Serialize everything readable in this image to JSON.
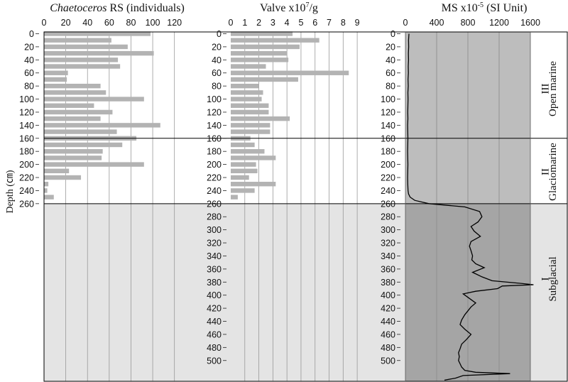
{
  "figure": {
    "y_label": "Depth (㎝)"
  },
  "units": [
    {
      "label": "III",
      "name": "Open marine",
      "from": 0,
      "to": 160
    },
    {
      "label": "II",
      "name": "Glaciomarine",
      "from": 160,
      "to": 260
    },
    {
      "label": "I",
      "name": "Subglacial",
      "from": 260,
      "to": 530
    }
  ],
  "colors": {
    "bar": "#b3b3b3",
    "subglacial_band": "#e4e4e4",
    "ms_upper_background": "#bdbdbd",
    "ms_lower_background": "#a5a5a5",
    "grid": "#999999",
    "line": "#000000"
  },
  "chart_data": [
    {
      "type": "bar",
      "orientation": "horizontal",
      "title_italic": "Chaetoceros",
      "title_rest": " RS (individuals)",
      "xlim": [
        0,
        130
      ],
      "xticks": [
        0,
        20,
        40,
        60,
        80,
        100,
        120
      ],
      "ylim": [
        0,
        530
      ],
      "depth": [
        0,
        10,
        20,
        30,
        40,
        50,
        60,
        70,
        80,
        90,
        100,
        110,
        120,
        130,
        140,
        150,
        160,
        170,
        180,
        190,
        200,
        210,
        220,
        230,
        240,
        250
      ],
      "values": [
        98,
        62,
        77,
        101,
        68,
        70,
        22,
        21,
        52,
        57,
        92,
        46,
        63,
        52,
        107,
        67,
        85,
        72,
        54,
        53,
        92,
        23,
        34,
        4,
        3,
        9
      ]
    },
    {
      "type": "bar",
      "orientation": "horizontal",
      "title_main": "Valve x10",
      "title_sup": "7",
      "title_after": "/g",
      "xlim": [
        0,
        9.5
      ],
      "xticks": [
        0,
        1,
        2,
        3,
        4,
        5,
        6,
        7,
        8,
        9
      ],
      "ylim": [
        0,
        530
      ],
      "depth": [
        0,
        10,
        20,
        30,
        40,
        50,
        60,
        70,
        80,
        90,
        100,
        110,
        120,
        130,
        140,
        150,
        160,
        170,
        180,
        190,
        200,
        210,
        220,
        230,
        240,
        250
      ],
      "values": [
        4.4,
        6.3,
        4.9,
        4.0,
        4.1,
        2.5,
        8.4,
        4.8,
        2.0,
        2.3,
        2.2,
        2.7,
        2.7,
        4.2,
        2.8,
        2.8,
        1.4,
        1.7,
        2.4,
        3.2,
        1.8,
        1.9,
        1.3,
        3.2,
        1.7,
        0.5
      ]
    },
    {
      "type": "line",
      "title_main": "MS x10",
      "title_sup": "-5",
      "title_after": " (SI Unit)",
      "xlim": [
        0,
        1600
      ],
      "xticks": [
        0,
        400,
        800,
        1200,
        1600
      ],
      "ylim": [
        0,
        530
      ],
      "x": [
        45,
        40,
        42,
        38,
        40,
        36,
        38,
        34,
        36,
        32,
        34,
        32,
        30,
        32,
        28,
        30,
        32,
        30,
        28,
        30,
        32,
        30,
        28,
        30,
        34,
        40,
        60,
        120,
        300,
        760,
        950,
        980,
        930,
        840,
        880,
        960,
        840,
        820,
        840,
        860,
        850,
        900,
        1010,
        860,
        980,
        1110,
        1480,
        1640,
        1240,
        1180,
        900,
        740,
        820,
        900,
        840,
        800,
        760,
        720,
        700,
        760,
        840,
        780,
        720,
        700,
        680,
        690,
        680,
        700,
        720,
        760,
        900,
        1340,
        740,
        640,
        500
      ],
      "y": [
        0,
        10,
        20,
        30,
        40,
        50,
        60,
        70,
        80,
        90,
        100,
        110,
        120,
        130,
        140,
        150,
        160,
        170,
        180,
        190,
        200,
        210,
        220,
        230,
        240,
        245,
        250,
        255,
        260,
        265,
        272,
        280,
        288,
        295,
        302,
        310,
        318,
        325,
        332,
        340,
        346,
        352,
        358,
        365,
        372,
        378,
        382,
        384,
        386,
        390,
        394,
        398,
        405,
        412,
        418,
        424,
        430,
        438,
        445,
        452,
        460,
        468,
        475,
        482,
        488,
        494,
        500,
        505,
        510,
        515,
        518,
        520,
        523,
        527,
        530
      ]
    }
  ],
  "panels": [
    {
      "depth_ticks": [
        "0",
        "20",
        "40",
        "60",
        "80",
        "100",
        "120",
        "140",
        "160",
        "180",
        "200",
        "220",
        "240",
        "260"
      ],
      "depth_tick_values": [
        0,
        20,
        40,
        60,
        80,
        100,
        120,
        140,
        160,
        180,
        200,
        220,
        240,
        260
      ]
    },
    {
      "depth_ticks": [
        "0",
        "20",
        "40",
        "60",
        "80",
        "100",
        "120",
        "140",
        "160",
        "180",
        "200",
        "220",
        "240",
        "260",
        "280",
        "300",
        "320",
        "340",
        "360",
        "380",
        "400",
        "420",
        "440",
        "460",
        "480",
        "500"
      ],
      "depth_tick_values": [
        0,
        20,
        40,
        60,
        80,
        100,
        120,
        140,
        160,
        180,
        200,
        220,
        240,
        260,
        280,
        300,
        320,
        340,
        360,
        380,
        400,
        420,
        440,
        460,
        480,
        500
      ]
    },
    {
      "depth_ticks": [
        "0",
        "20",
        "40",
        "60",
        "80",
        "100",
        "120",
        "140",
        "160",
        "180",
        "200",
        "220",
        "240",
        "260",
        "280",
        "300",
        "320",
        "340",
        "360",
        "380",
        "400",
        "420",
        "440",
        "460",
        "480",
        "500"
      ],
      "depth_tick_values": [
        0,
        20,
        40,
        60,
        80,
        100,
        120,
        140,
        160,
        180,
        200,
        220,
        240,
        260,
        280,
        300,
        320,
        340,
        360,
        380,
        400,
        420,
        440,
        460,
        480,
        500
      ]
    }
  ]
}
